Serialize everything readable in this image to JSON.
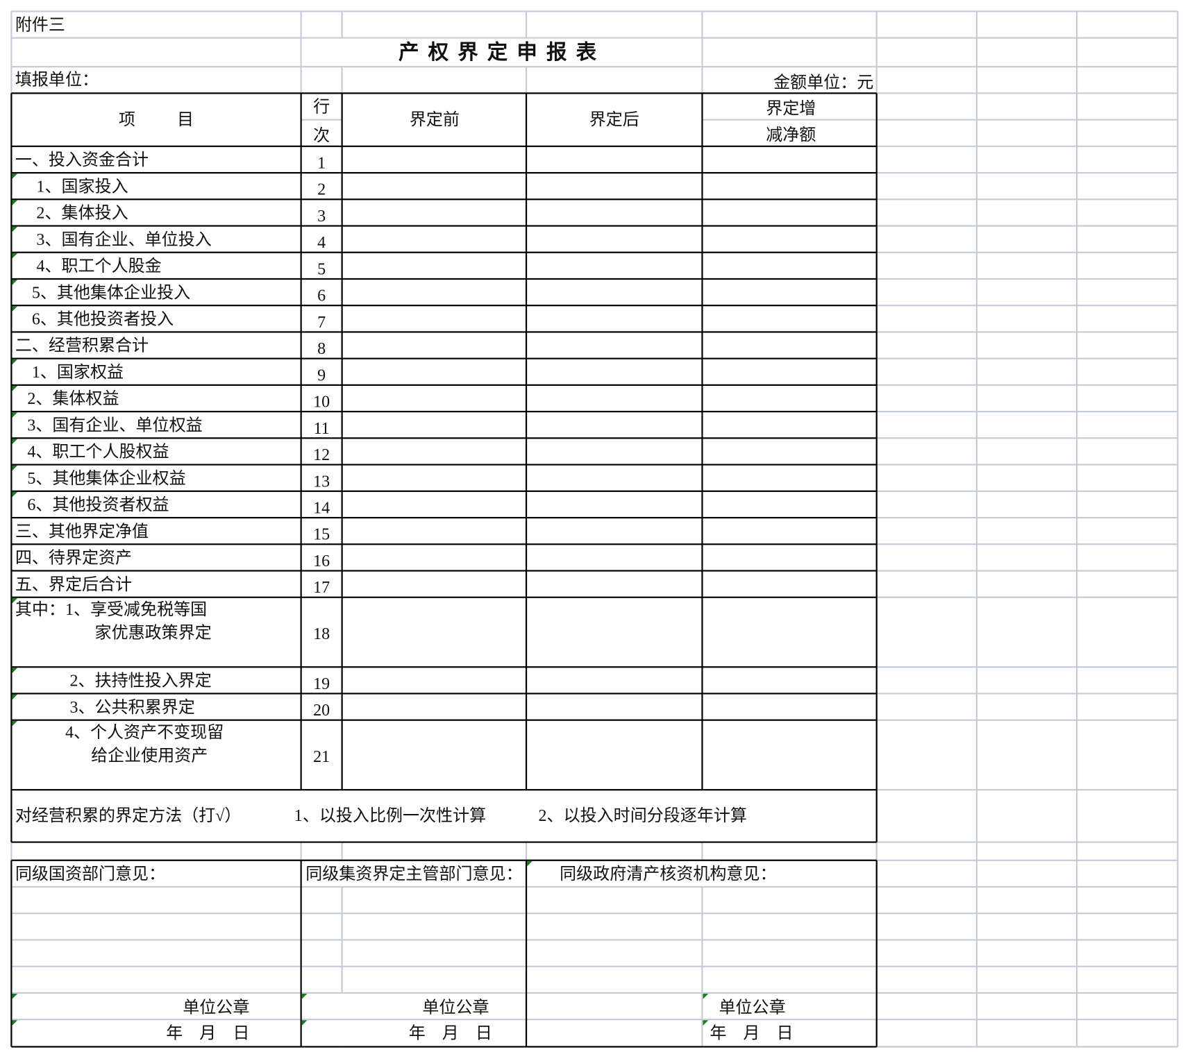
{
  "sheet": {
    "attachment": "附件三",
    "title": "产权界定申报表",
    "reporting_unit_label": "填报单位：",
    "amount_unit_label": "金额单位：元"
  },
  "header": {
    "item": "项          目",
    "row_no_top": "行",
    "row_no_bottom": "次",
    "before": "界定前",
    "after": "界定后",
    "net_change_line1": "界定增",
    "net_change_line2": "减净额"
  },
  "rows": [
    {
      "label": "一、投入资金合计",
      "no": "1"
    },
    {
      "label": "1、国家投入",
      "no": "2"
    },
    {
      "label": "2、集体投入",
      "no": "3"
    },
    {
      "label": "3、国有企业、单位投入",
      "no": "4"
    },
    {
      "label": "4、职工个人股金",
      "no": "5"
    },
    {
      "label": "5、其他集体企业投入",
      "no": "6"
    },
    {
      "label": "6、其他投资者投入",
      "no": "7"
    },
    {
      "label": "二、经营积累合计",
      "no": "8"
    },
    {
      "label": "1、国家权益",
      "no": "9"
    },
    {
      "label": "2、集体权益",
      "no": "10"
    },
    {
      "label": "3、国有企业、单位权益",
      "no": "11"
    },
    {
      "label": "4、职工个人股权益",
      "no": "12"
    },
    {
      "label": "5、其他集体企业权益",
      "no": "13"
    },
    {
      "label": "6、其他投资者权益",
      "no": "14"
    },
    {
      "label": "三、其他界定净值",
      "no": "15"
    },
    {
      "label": "四、待界定资产",
      "no": "16"
    },
    {
      "label": "五、界定后合计",
      "no": "17"
    },
    {
      "label": "其中：1、享受减免税等国",
      "label2": "家优惠政策界定",
      "no": "18"
    },
    {
      "label": "2、扶持性投入界定",
      "no": "19"
    },
    {
      "label": "3、公共积累界定",
      "no": "20"
    },
    {
      "label": "4、个人资产不变现留",
      "label2": "给企业使用资产",
      "no": "21"
    }
  ],
  "method": {
    "label": "对经营积累的界定方法（打√）",
    "option1": "1、以投入比例一次性计算",
    "option2": "2、以投入时间分段逐年计算"
  },
  "opinions": [
    {
      "label": "同级国资部门意见：",
      "seal": "单位公章",
      "date": "年    月    日"
    },
    {
      "label": "同级集资界定主管部门意见：",
      "seal": "单位公章",
      "date": "年    月    日"
    },
    {
      "label": "同级政府清产核资机构意见：",
      "seal": "单位公章",
      "date": "年    月    日"
    }
  ],
  "colors": {
    "gridline": "#c7cbd7",
    "border": "#000000",
    "error_indicator": "#1a7f1a"
  }
}
